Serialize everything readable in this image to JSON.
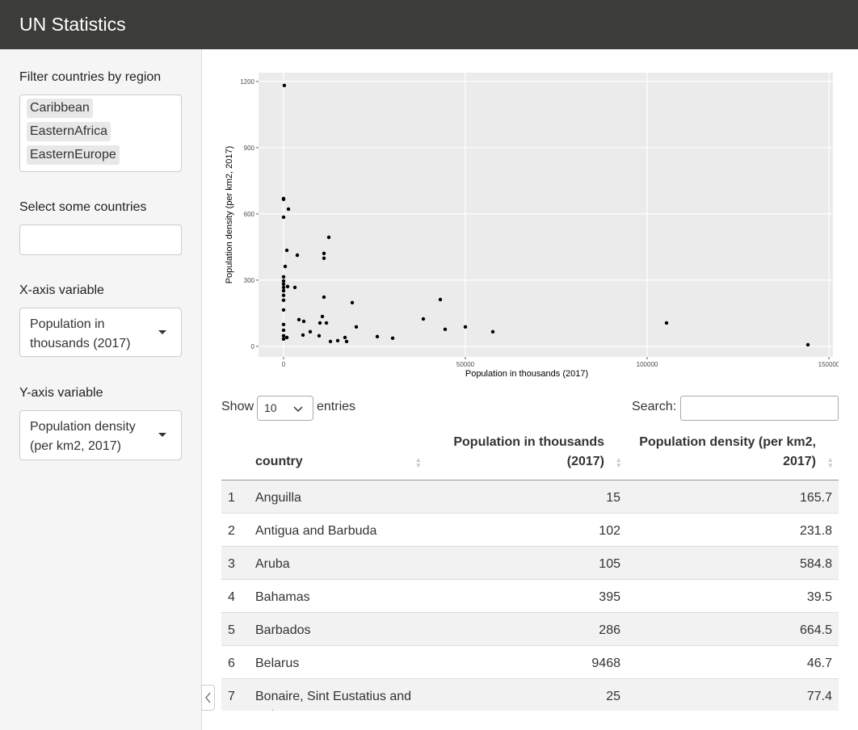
{
  "header": {
    "title": "UN Statistics"
  },
  "sidebar": {
    "region_filter": {
      "label": "Filter countries by region",
      "selected": [
        "Caribbean",
        "EasternAfrica",
        "EasternEurope"
      ]
    },
    "country_select": {
      "label": "Select some countries"
    },
    "x_variable": {
      "label": "X-axis variable",
      "selected": "Population in thousands (2017)"
    },
    "y_variable": {
      "label": "Y-axis variable",
      "selected": "Population density (per km2, 2017)"
    }
  },
  "chart_data": {
    "type": "scatter",
    "x_label": "Population in thousands (2017)",
    "y_label": "Population density (per km2, 2017)",
    "x": [
      200,
      0,
      0,
      0,
      1333,
      900,
      12444,
      3778,
      11111,
      11111,
      444,
      0,
      0,
      0,
      0,
      1111,
      3111,
      0,
      11111,
      0,
      0,
      43111,
      18889,
      0,
      4222,
      38444,
      5556,
      10667,
      10000,
      11778,
      105333,
      0,
      0,
      20000,
      50000,
      44444,
      57556,
      7333,
      5333,
      9778,
      0,
      900,
      16889,
      25778,
      30000,
      0,
      12889,
      14889,
      17333,
      144222
    ],
    "values": [
      1182,
      670,
      666,
      585,
      622,
      435,
      494,
      413,
      421,
      399,
      362,
      315,
      296,
      282,
      267,
      271,
      267,
      252,
      223,
      231,
      209,
      212,
      198,
      165,
      121,
      124,
      113,
      135,
      106,
      106,
      106,
      99,
      73,
      88,
      88,
      77,
      66,
      66,
      51,
      48,
      48,
      40,
      40,
      44,
      37,
      33,
      22,
      26,
      22,
      7
    ],
    "color": "#000000",
    "xlim": [
      -6889,
      151111
    ],
    "ylim": [
      -48,
      1240
    ],
    "xticks": [
      0,
      50000,
      100000,
      150000
    ],
    "yticks": [
      0,
      300,
      600,
      900,
      1200
    ],
    "grid": true
  },
  "table": {
    "length_before": "Show",
    "length": 10,
    "length_after": "entries",
    "search_label": "Search:",
    "columns": [
      "country",
      "Population in thousands (2017)",
      "Population density (per km2, 2017)"
    ],
    "rows": [
      [
        1,
        "Anguilla",
        15,
        165.7
      ],
      [
        2,
        "Antigua and Barbuda",
        102,
        231.8
      ],
      [
        3,
        "Aruba",
        105,
        584.8
      ],
      [
        4,
        "Bahamas",
        395,
        39.5
      ],
      [
        5,
        "Barbados",
        286,
        664.5
      ],
      [
        6,
        "Belarus",
        9468,
        46.7
      ],
      [
        7,
        "Bonaire, Sint Eustatius and Saba",
        25,
        77.4
      ]
    ]
  }
}
